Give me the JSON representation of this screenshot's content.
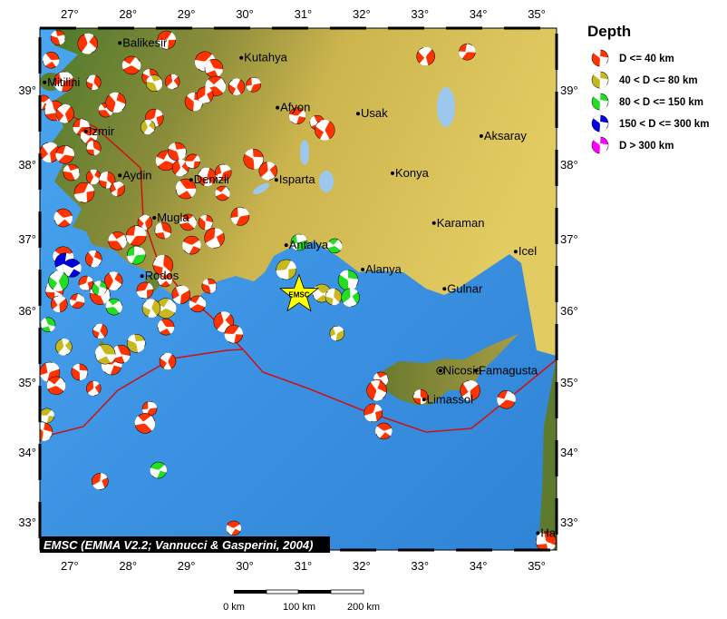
{
  "map": {
    "credit": "EMSC (EMMA V2.2; Vannucci & Gasperini, 2004)",
    "lon_ticks": [
      27,
      28,
      29,
      30,
      31,
      32,
      33,
      34,
      35
    ],
    "lat_ticks": [
      33,
      34,
      35,
      36,
      37,
      38,
      39
    ],
    "degree_suffix": "°",
    "epicenter": {
      "label": "EMSC",
      "lon": 30.93,
      "lat": 36.22,
      "color": "#ffff00"
    },
    "colors": {
      "sea": "#3d95e6",
      "land_low": "#4f7a2a",
      "land_high": "#d8c25a",
      "fault": "#d01010"
    }
  },
  "legend": {
    "title": "Depth",
    "items": [
      {
        "label": "D <= 40 km",
        "color": "#ff3300"
      },
      {
        "label": "40 < D <= 80 km",
        "color": "#c8b820"
      },
      {
        "label": "80 < D <= 150 km",
        "color": "#22dd22"
      },
      {
        "label": "150 < D <= 300 km",
        "color": "#0000dd"
      },
      {
        "label": "D > 300 km",
        "color": "#ff00ff"
      }
    ]
  },
  "scale_bar": {
    "labels": [
      "0 km",
      "100 km",
      "200 km"
    ]
  },
  "cities": [
    {
      "name": "Balikesir",
      "lon": 27.86,
      "lat": 39.63
    },
    {
      "name": "Kutahya",
      "lon": 29.94,
      "lat": 39.43
    },
    {
      "name": "Mitilini",
      "lon": 26.57,
      "lat": 39.1
    },
    {
      "name": "Izmir",
      "lon": 27.28,
      "lat": 38.44
    },
    {
      "name": "Afyon",
      "lon": 30.56,
      "lat": 38.76
    },
    {
      "name": "Usak",
      "lon": 31.94,
      "lat": 38.68
    },
    {
      "name": "Aksaray",
      "lon": 34.05,
      "lat": 38.38
    },
    {
      "name": "Konya",
      "lon": 32.53,
      "lat": 37.88
    },
    {
      "name": "Aydin",
      "lon": 27.86,
      "lat": 37.85
    },
    {
      "name": "Denizli",
      "lon": 29.08,
      "lat": 37.79
    },
    {
      "name": "Isparta",
      "lon": 30.54,
      "lat": 37.79
    },
    {
      "name": "Mugla",
      "lon": 28.45,
      "lat": 37.28
    },
    {
      "name": "Karaman",
      "lon": 33.24,
      "lat": 37.21
    },
    {
      "name": "Antalya",
      "lon": 30.71,
      "lat": 36.91
    },
    {
      "name": "Icel",
      "lon": 34.64,
      "lat": 36.82
    },
    {
      "name": "Alanya",
      "lon": 32.02,
      "lat": 36.57
    },
    {
      "name": "Rodos",
      "lon": 28.24,
      "lat": 36.48
    },
    {
      "name": "Gulnar",
      "lon": 33.42,
      "lat": 36.3
    },
    {
      "name": "Nicosia",
      "lon": 33.35,
      "lat": 35.16
    },
    {
      "name": "Famagusta",
      "lon": 33.96,
      "lat": 35.16
    },
    {
      "name": "Limassol",
      "lon": 33.07,
      "lat": 34.75
    },
    {
      "name": "Ha",
      "lon": 35.02,
      "lat": 32.84
    }
  ],
  "events": [
    [
      26.8,
      39.7,
      0
    ],
    [
      27.31,
      39.62,
      0
    ],
    [
      28.66,
      39.67,
      0
    ],
    [
      26.68,
      39.4,
      0
    ],
    [
      27.41,
      39.1,
      0
    ],
    [
      26.9,
      39.11,
      0
    ],
    [
      28.06,
      39.33,
      0
    ],
    [
      28.38,
      39.17,
      0
    ],
    [
      28.76,
      39.11,
      0
    ],
    [
      29.32,
      39.38,
      0
    ],
    [
      29.47,
      39.29,
      0
    ],
    [
      29.86,
      39.04,
      0
    ],
    [
      30.15,
      39.07,
      0
    ],
    [
      29.5,
      39.05,
      0
    ],
    [
      29.13,
      38.84,
      0
    ],
    [
      29.32,
      38.93,
      0
    ],
    [
      26.55,
      38.83,
      0
    ],
    [
      26.74,
      38.72,
      0
    ],
    [
      26.92,
      38.68,
      0
    ],
    [
      27.2,
      38.5,
      0
    ],
    [
      27.62,
      38.73,
      0
    ],
    [
      27.79,
      38.83,
      0
    ],
    [
      28.45,
      38.62,
      0
    ],
    [
      27.33,
      38.38,
      0
    ],
    [
      27.41,
      38.22,
      0
    ],
    [
      26.66,
      38.16,
      0
    ],
    [
      26.92,
      38.13,
      0
    ],
    [
      27.03,
      37.89,
      0
    ],
    [
      27.41,
      37.83,
      0
    ],
    [
      27.25,
      37.62,
      0
    ],
    [
      26.89,
      37.28,
      0
    ],
    [
      27.64,
      37.79,
      0
    ],
    [
      27.82,
      37.67,
      0
    ],
    [
      28.65,
      38.05,
      0
    ],
    [
      28.84,
      38.17,
      0
    ],
    [
      28.9,
      37.95,
      0
    ],
    [
      29.11,
      38.04,
      0
    ],
    [
      28.99,
      37.67,
      0
    ],
    [
      29.35,
      37.83,
      0
    ],
    [
      29.63,
      37.89,
      0
    ],
    [
      29.62,
      37.61,
      0
    ],
    [
      30.15,
      38.07,
      0
    ],
    [
      30.4,
      37.91,
      0
    ],
    [
      30.9,
      38.65,
      0
    ],
    [
      31.24,
      38.56,
      0
    ],
    [
      31.37,
      38.46,
      0
    ],
    [
      29.92,
      37.3,
      0
    ],
    [
      29.03,
      37.22,
      0
    ],
    [
      29.33,
      37.22,
      0
    ],
    [
      29.48,
      37.01,
      0
    ],
    [
      29.09,
      36.91,
      0
    ],
    [
      28.6,
      37.11,
      0
    ],
    [
      28.29,
      37.22,
      0
    ],
    [
      28.14,
      37.04,
      0
    ],
    [
      27.82,
      36.97,
      0
    ],
    [
      27.41,
      36.72,
      0
    ],
    [
      27.28,
      36.38,
      0
    ],
    [
      26.89,
      36.75,
      0
    ],
    [
      26.74,
      36.28,
      0
    ],
    [
      26.82,
      36.09,
      0
    ],
    [
      27.13,
      36.13,
      0
    ],
    [
      27.52,
      36.22,
      0
    ],
    [
      27.75,
      36.41,
      0
    ],
    [
      28.29,
      36.28,
      0
    ],
    [
      28.63,
      36.43,
      0
    ],
    [
      28.6,
      36.63,
      0
    ],
    [
      28.91,
      36.22,
      0
    ],
    [
      29.19,
      36.09,
      0
    ],
    [
      29.39,
      36.34,
      0
    ],
    [
      29.64,
      35.84,
      0
    ],
    [
      29.81,
      35.67,
      0
    ],
    [
      28.65,
      35.77,
      0
    ],
    [
      27.52,
      35.71,
      0
    ],
    [
      26.66,
      35.14,
      0
    ],
    [
      26.77,
      34.95,
      0
    ],
    [
      27.17,
      35.14,
      0
    ],
    [
      27.41,
      34.91,
      0
    ],
    [
      27.72,
      35.24,
      0
    ],
    [
      27.88,
      35.39,
      0
    ],
    [
      28.68,
      35.29,
      0
    ],
    [
      28.37,
      34.62,
      0
    ],
    [
      28.29,
      34.41,
      0
    ],
    [
      26.55,
      34.29,
      0
    ],
    [
      27.52,
      33.58,
      0
    ],
    [
      29.81,
      32.91,
      0
    ],
    [
      35.16,
      32.72,
      0
    ],
    [
      33.1,
      39.45,
      0
    ],
    [
      33.81,
      39.51,
      0
    ],
    [
      32.33,
      35.04,
      0
    ],
    [
      32.26,
      34.88,
      0
    ],
    [
      32.2,
      34.56,
      0
    ],
    [
      32.38,
      34.3,
      0
    ],
    [
      33.01,
      34.79,
      0
    ],
    [
      33.86,
      34.88,
      0
    ],
    [
      34.48,
      34.75,
      0
    ],
    [
      28.45,
      39.09,
      1
    ],
    [
      28.34,
      38.5,
      1
    ],
    [
      30.71,
      36.57,
      1
    ],
    [
      31.32,
      36.24,
      1
    ],
    [
      31.52,
      36.19,
      1
    ],
    [
      31.58,
      35.68,
      1
    ],
    [
      28.65,
      36.03,
      1
    ],
    [
      28.14,
      35.54,
      1
    ],
    [
      26.9,
      35.49,
      1
    ],
    [
      26.61,
      34.52,
      1
    ],
    [
      27.61,
      35.39,
      1
    ],
    [
      28.4,
      36.03,
      1
    ],
    [
      30.93,
      36.95,
      2
    ],
    [
      31.54,
      36.9,
      2
    ],
    [
      31.77,
      36.42,
      2
    ],
    [
      31.81,
      36.18,
      2
    ],
    [
      28.52,
      33.74,
      2
    ],
    [
      26.63,
      35.8,
      2
    ],
    [
      26.81,
      36.41,
      2
    ],
    [
      28.14,
      36.77,
      2
    ],
    [
      27.76,
      36.05,
      2
    ],
    [
      27.51,
      36.31,
      2
    ],
    [
      26.92,
      36.66,
      3
    ],
    [
      27.04,
      36.59,
      3
    ]
  ]
}
